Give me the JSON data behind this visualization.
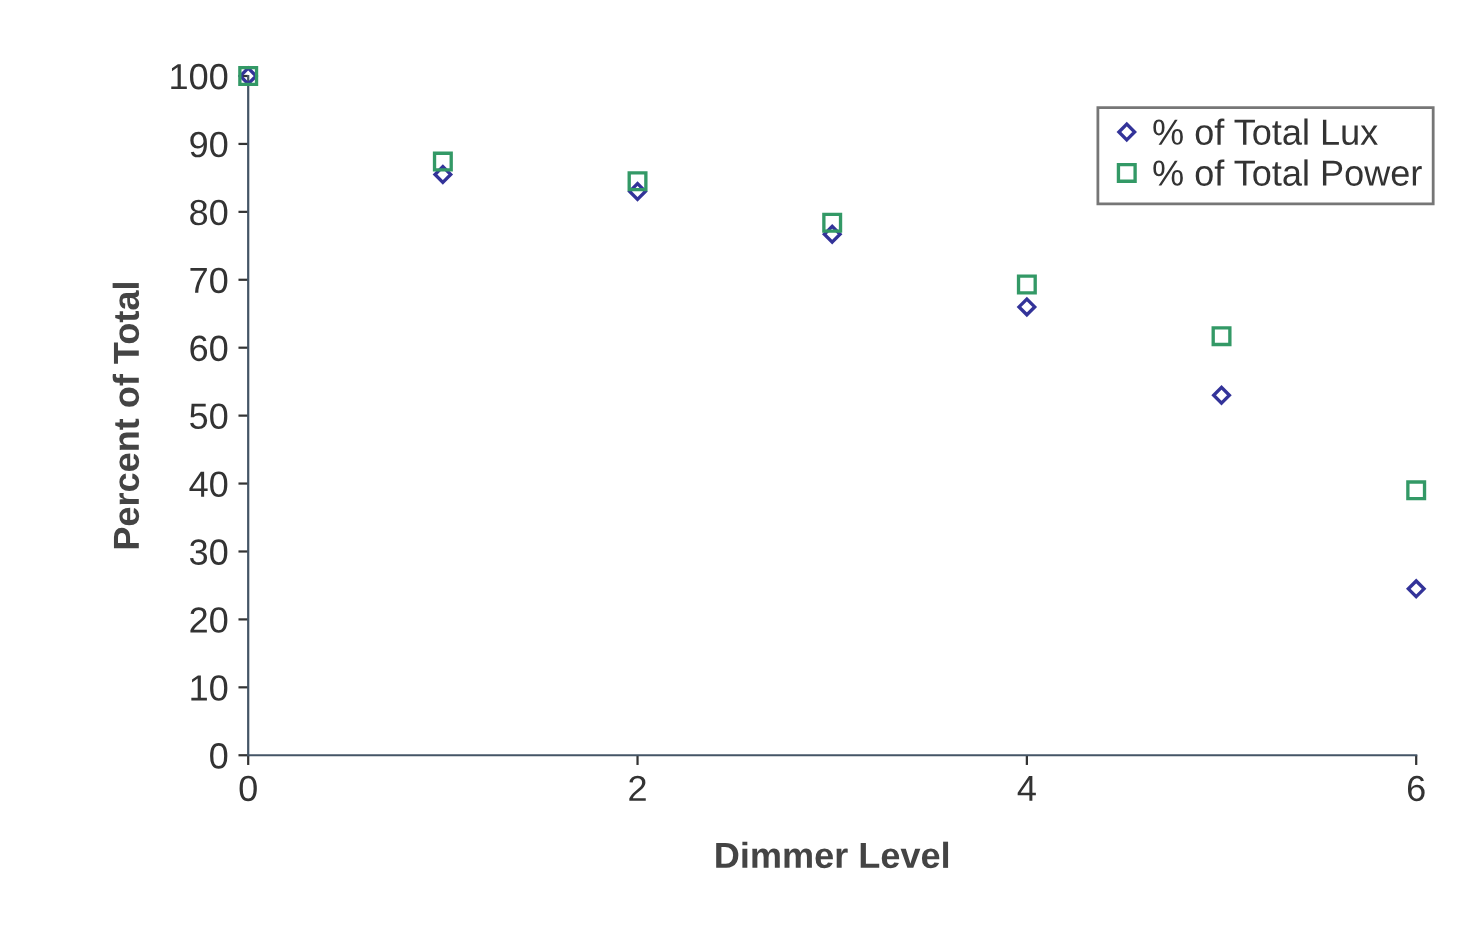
{
  "chart_data": {
    "type": "scatter",
    "xlabel": "Dimmer Level",
    "ylabel": "Percent of Total",
    "x": [
      0,
      1,
      2,
      3,
      4,
      5,
      6
    ],
    "series": [
      {
        "name": "% of Total Lux",
        "color": "#333399",
        "marker": "diamond",
        "values": [
          100,
          85.5,
          83,
          76.7,
          66,
          53,
          24.5
        ]
      },
      {
        "name": "% of Total Power",
        "color": "#339966",
        "marker": "square",
        "values": [
          100,
          87.4,
          84.5,
          78.4,
          69.3,
          61.7,
          39
        ]
      }
    ],
    "xlim": [
      0,
      6
    ],
    "xticks": [
      0,
      2,
      4,
      6
    ],
    "ylim": [
      0,
      100
    ],
    "yticks": [
      0,
      10,
      20,
      30,
      40,
      50,
      60,
      70,
      80,
      90,
      100
    ],
    "grid": false,
    "legend": "top right"
  }
}
